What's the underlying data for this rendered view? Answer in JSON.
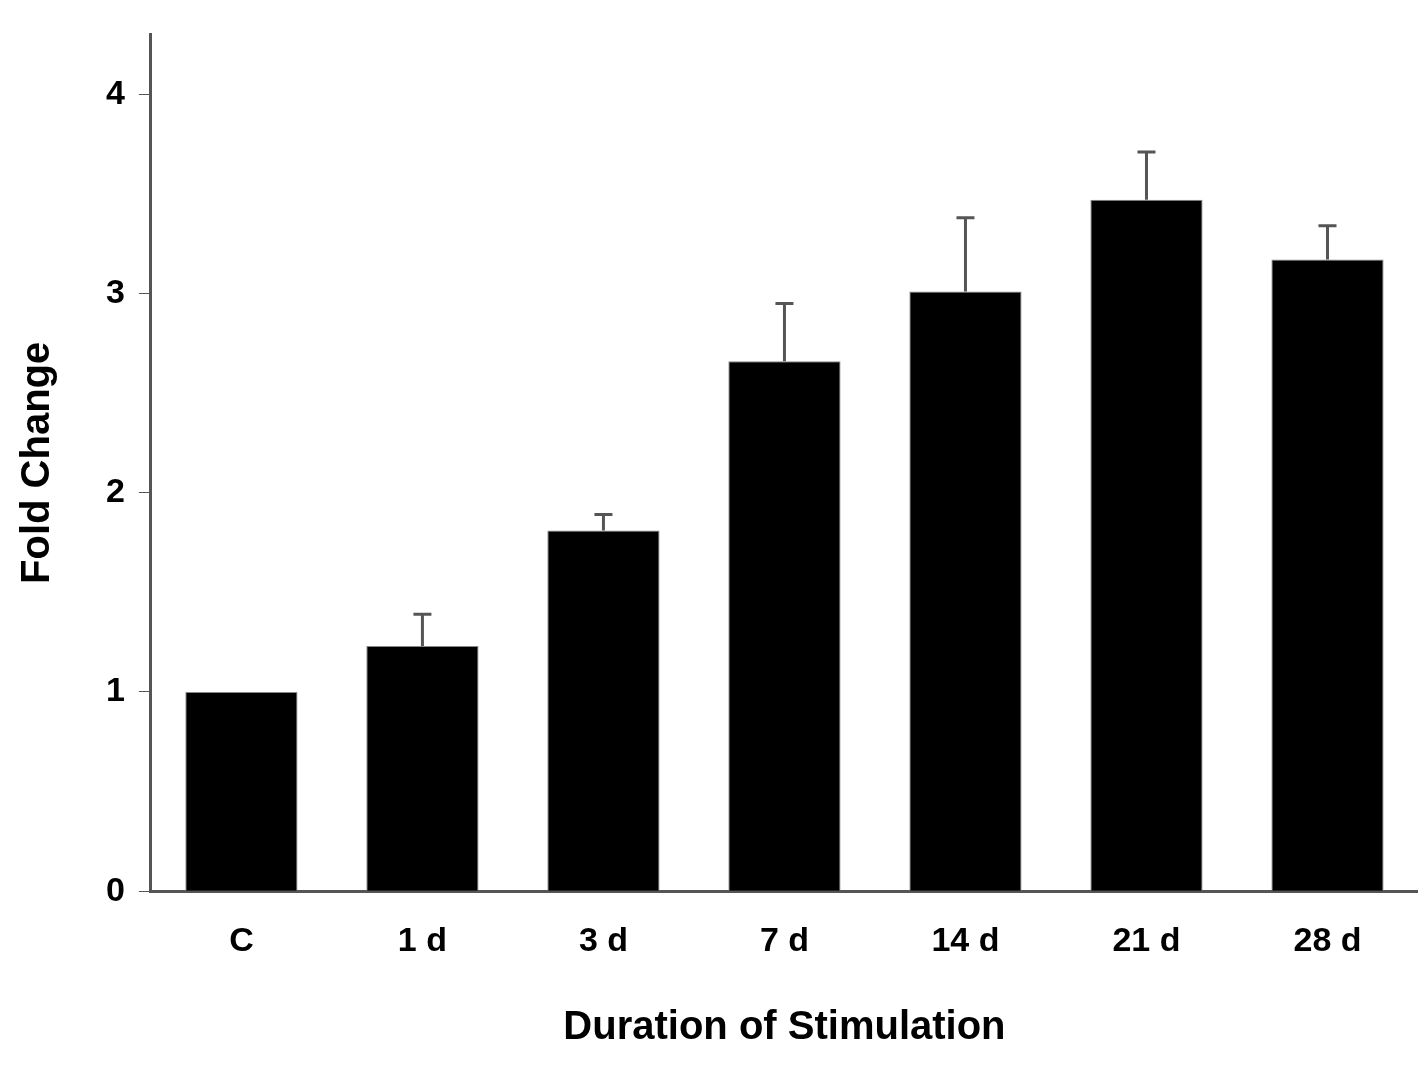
{
  "chart_data": {
    "type": "bar",
    "xlabel": "Duration of Stimulation",
    "ylabel": "Fold Change",
    "categories": [
      "C",
      "1 d",
      "3 d",
      "7 d",
      "14 d",
      "21 d",
      "28 d"
    ],
    "values": [
      1.0,
      1.23,
      1.81,
      2.66,
      3.01,
      3.47,
      3.17
    ],
    "errors": [
      null,
      [
        1.23,
        1.39
      ],
      [
        1.81,
        1.89
      ],
      [
        2.66,
        2.95
      ],
      [
        3.01,
        3.38
      ],
      [
        3.47,
        3.71
      ],
      [
        3.17,
        3.34
      ]
    ],
    "color": "#000000",
    "ylim": [
      0,
      4.3
    ],
    "yticks": [
      0,
      1,
      2,
      3,
      4
    ],
    "grid": false,
    "legend": false
  }
}
